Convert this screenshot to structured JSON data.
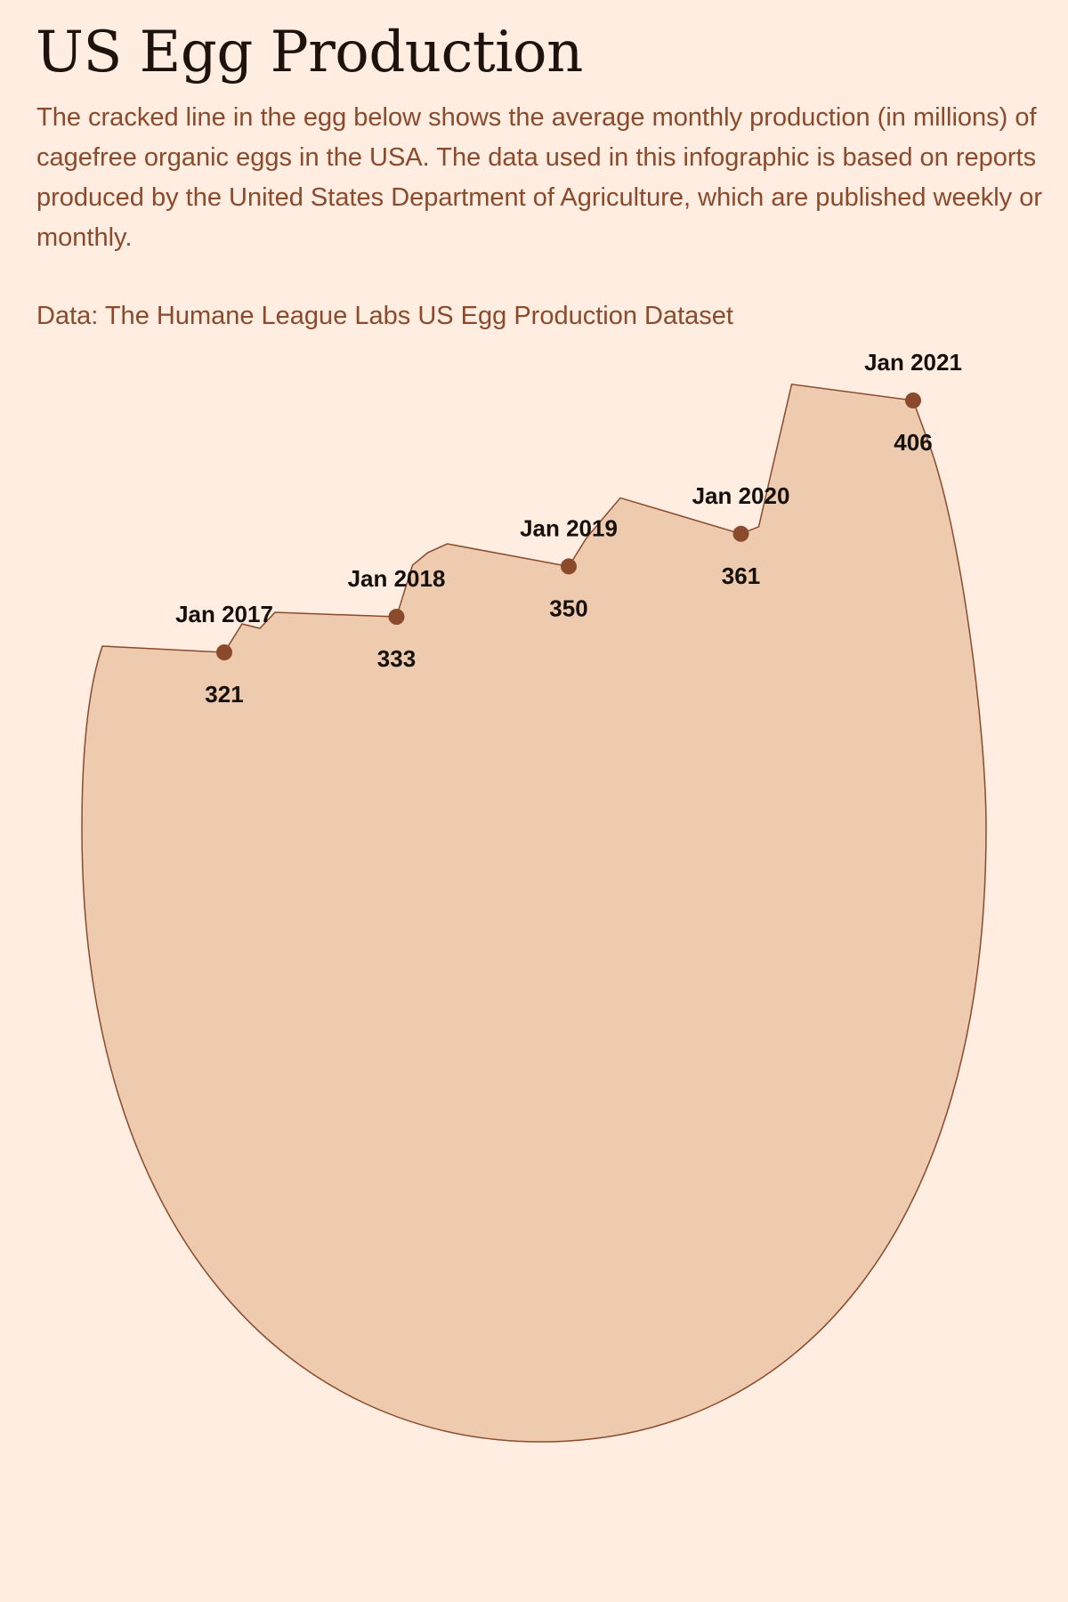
{
  "title": "US Egg Production",
  "description": "The cracked line in the egg below shows the average monthly production (in millions) of cagefree organic eggs in the USA. The data used in this infographic is based on reports produced by the United States Department of Agriculture, which are published weekly or monthly.",
  "source": "Data: The Humane League Labs US Egg Production Dataset",
  "colors": {
    "background": "#feede0",
    "egg_fill": "#eecaae",
    "egg_stroke": "#8b4a2c",
    "marker": "#8b4a2c",
    "label": "#16100c"
  },
  "chart_data": {
    "type": "line",
    "unit": "millions",
    "x": [
      "Jan 2017",
      "Jan 2018",
      "Jan 2019",
      "Jan 2020",
      "Jan 2021"
    ],
    "values": [
      321,
      333,
      350,
      361,
      406
    ]
  }
}
